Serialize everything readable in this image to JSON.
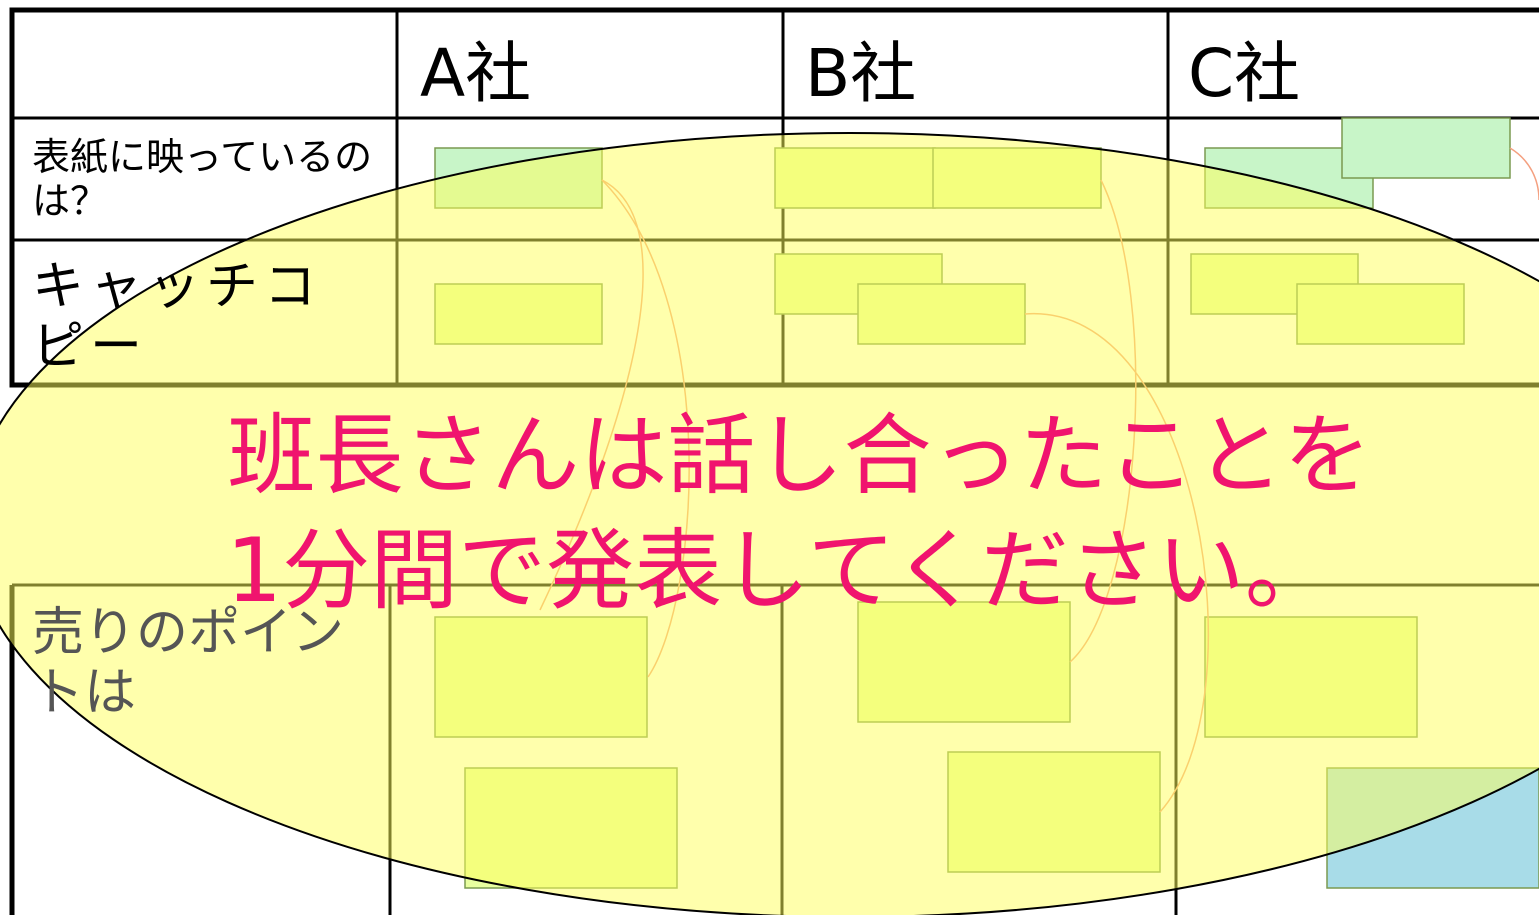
{
  "table": {
    "columns": [
      "A社",
      "B社",
      "C社"
    ],
    "rows": [
      "表紙に映っているのは？",
      "キャッチコピー",
      "売りのポイントは"
    ]
  },
  "message": {
    "lines": [
      "班長さんは話し合ったことを",
      "1分間で発表してください。"
    ]
  }
}
